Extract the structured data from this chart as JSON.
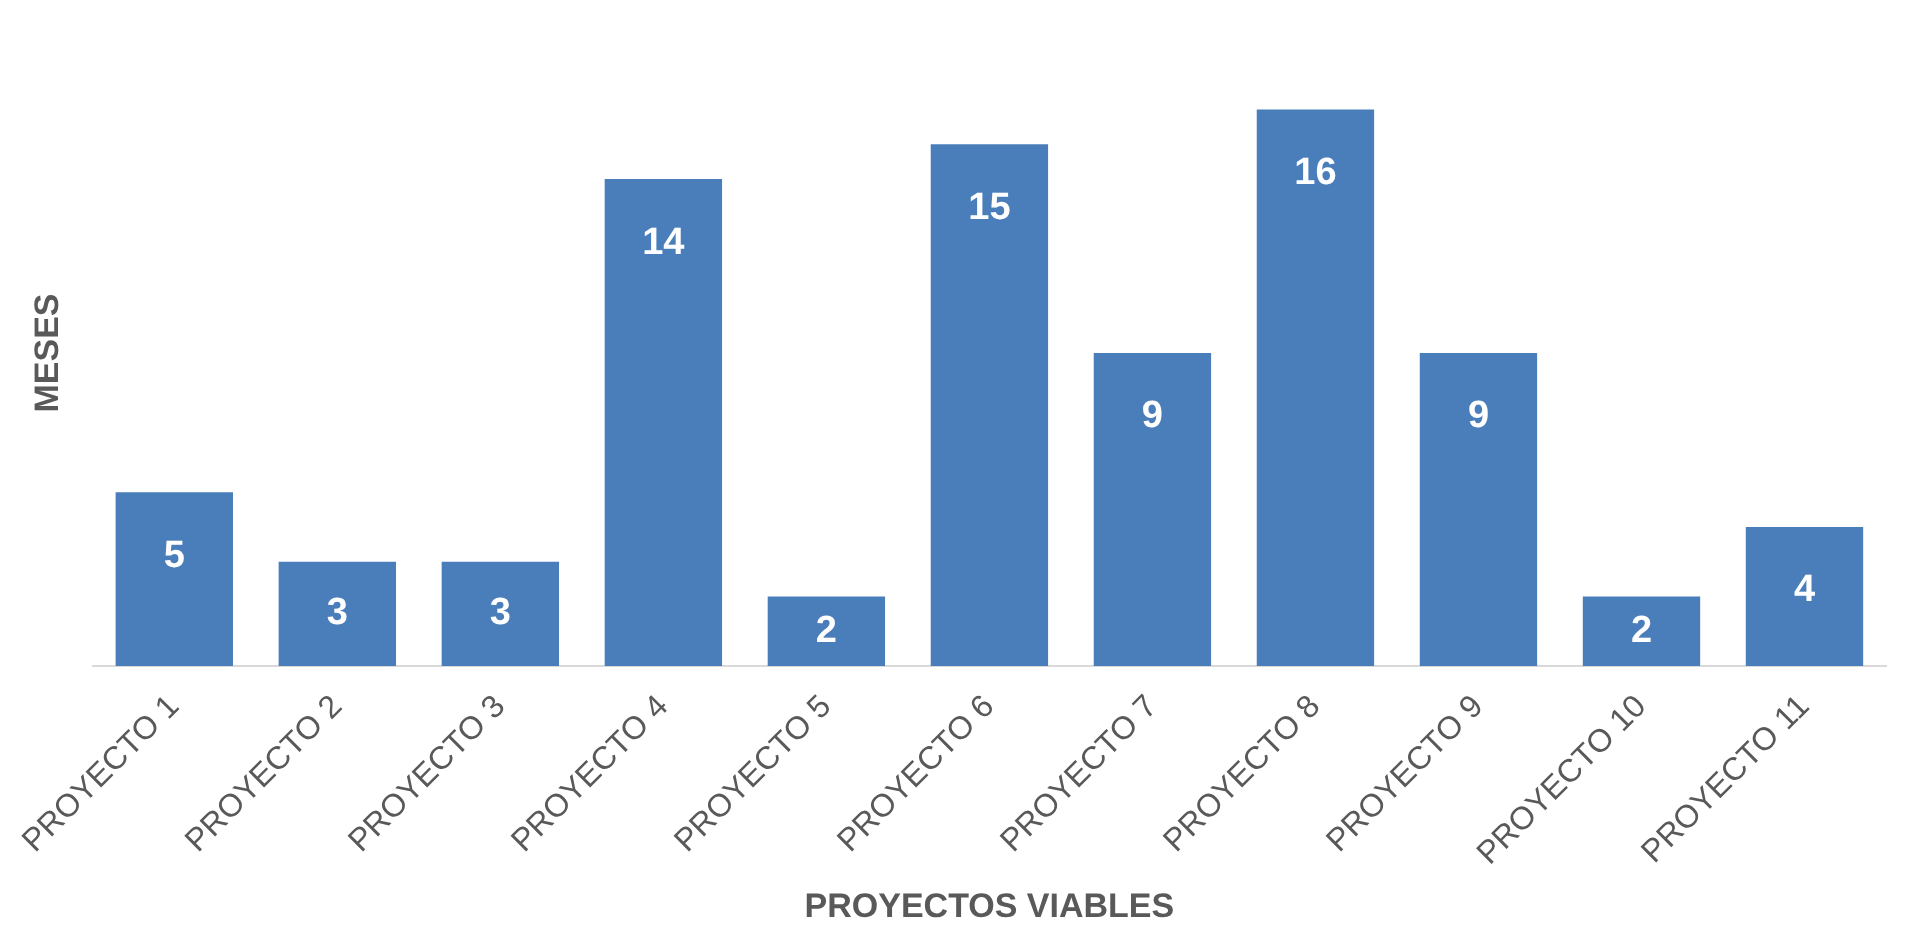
{
  "chart_data": {
    "type": "bar",
    "xlabel": "PROYECTOS VIABLES",
    "ylabel": "MESES",
    "categories": [
      "PROYECTO 1",
      "PROYECTO 2",
      "PROYECTO 3",
      "PROYECTO 4",
      "PROYECTO 5",
      "PROYECTO 6",
      "PROYECTO 7",
      "PROYECTO 8",
      "PROYECTO 9",
      "PROYECTO 10",
      "PROYECTO 11"
    ],
    "values": [
      5,
      3,
      3,
      14,
      2,
      15,
      9,
      16,
      9,
      2,
      4
    ],
    "color": "#4a7ebb",
    "data_labels": true,
    "legend": false
  }
}
